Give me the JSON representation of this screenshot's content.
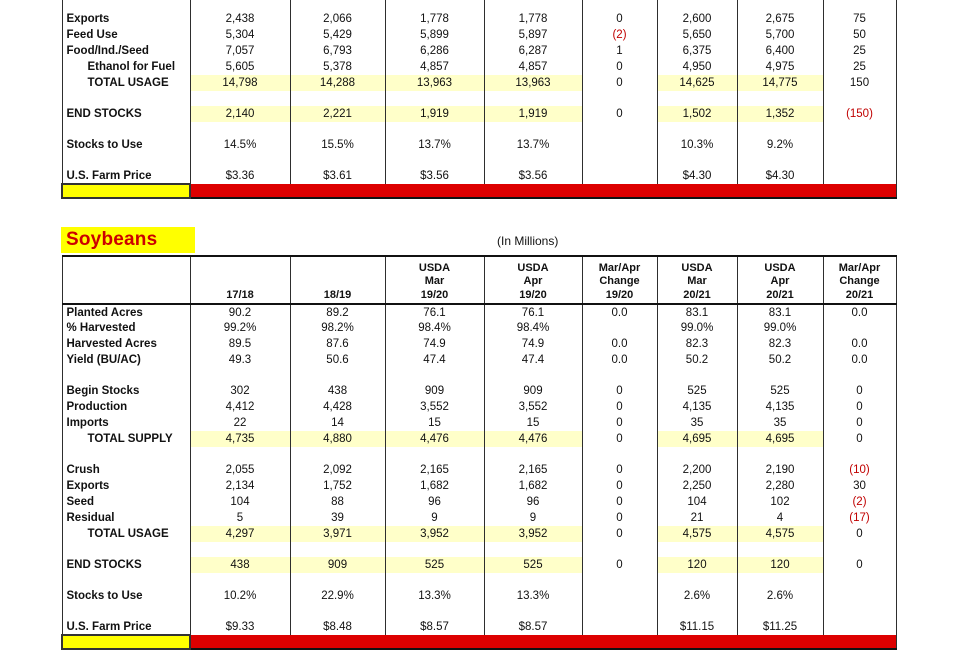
{
  "colors": {
    "row_highlight": "#ffffc9",
    "title_highlight_yellow": "#ffff00",
    "separator_bar_red": "#dd0000",
    "negative_value_red": "#c00000",
    "title_text_red": "#cc0000",
    "grid_border": "#2e2e2e"
  },
  "tables": {
    "top_table": {
      "rows": [
        {
          "label": "Exports",
          "cells": [
            "2,438",
            "2,066",
            "1,778",
            "1,778",
            "0",
            "2,600",
            "2,675",
            "75"
          ]
        },
        {
          "label": "Feed Use",
          "cells": [
            "5,304",
            "5,429",
            "5,899",
            "5,897",
            "(2)",
            "5,650",
            "5,700",
            "50"
          ]
        },
        {
          "label": "Food/Ind./Seed",
          "cells": [
            "7,057",
            "6,793",
            "6,286",
            "6,287",
            "1",
            "6,375",
            "6,400",
            "25"
          ]
        },
        {
          "label": "Ethanol for Fuel",
          "indent": true,
          "cells": [
            "5,605",
            "5,378",
            "4,857",
            "4,857",
            "0",
            "4,950",
            "4,975",
            "25"
          ]
        },
        {
          "label": "TOTAL USAGE",
          "indent": true,
          "highlight": true,
          "cells": [
            "14,798",
            "14,288",
            "13,963",
            "13,963",
            "0",
            "14,625",
            "14,775",
            "150"
          ]
        },
        {
          "blank": true
        },
        {
          "label": "END STOCKS",
          "highlight": true,
          "cells": [
            "2,140",
            "2,221",
            "1,919",
            "1,919",
            "0",
            "1,502",
            "1,352",
            "(150)"
          ]
        },
        {
          "blank": true
        },
        {
          "label": "Stocks to Use",
          "cells": [
            "14.5%",
            "15.5%",
            "13.7%",
            "13.7%",
            "",
            "10.3%",
            "9.2%",
            ""
          ]
        },
        {
          "blank": true
        },
        {
          "label": "U.S. Farm Price",
          "cells": [
            "$3.36",
            "$3.61",
            "$3.56",
            "$3.56",
            "",
            "$4.30",
            "$4.30",
            ""
          ]
        }
      ]
    },
    "soybeans": {
      "title": "Soybeans",
      "units_caption": "(In Millions)",
      "column_headers": [
        "",
        "17/18",
        "18/19",
        "USDA\nMar\n19/20",
        "USDA\nApr\n19/20",
        "Mar/Apr\nChange\n19/20",
        "USDA\nMar\n20/21",
        "USDA\nApr\n20/21",
        "Mar/Apr\nChange\n20/21"
      ],
      "rows": [
        {
          "label": "Planted Acres",
          "cells": [
            "90.2",
            "89.2",
            "76.1",
            "76.1",
            "0.0",
            "83.1",
            "83.1",
            "0.0"
          ]
        },
        {
          "label": "% Harvested",
          "cells": [
            "99.2%",
            "98.2%",
            "98.4%",
            "98.4%",
            "",
            "99.0%",
            "99.0%",
            ""
          ]
        },
        {
          "label": "Harvested Acres",
          "cells": [
            "89.5",
            "87.6",
            "74.9",
            "74.9",
            "0.0",
            "82.3",
            "82.3",
            "0.0"
          ]
        },
        {
          "label": "Yield (BU/AC)",
          "cells": [
            "49.3",
            "50.6",
            "47.4",
            "47.4",
            "0.0",
            "50.2",
            "50.2",
            "0.0"
          ]
        },
        {
          "blank": true
        },
        {
          "label": "Begin Stocks",
          "cells": [
            "302",
            "438",
            "909",
            "909",
            "0",
            "525",
            "525",
            "0"
          ]
        },
        {
          "label": "Production",
          "cells": [
            "4,412",
            "4,428",
            "3,552",
            "3,552",
            "0",
            "4,135",
            "4,135",
            "0"
          ]
        },
        {
          "label": "Imports",
          "cells": [
            "22",
            "14",
            "15",
            "15",
            "0",
            "35",
            "35",
            "0"
          ]
        },
        {
          "label": "TOTAL SUPPLY",
          "indent": true,
          "highlight": true,
          "cells": [
            "4,735",
            "4,880",
            "4,476",
            "4,476",
            "0",
            "4,695",
            "4,695",
            "0"
          ]
        },
        {
          "blank": true
        },
        {
          "label": "Crush",
          "cells": [
            "2,055",
            "2,092",
            "2,165",
            "2,165",
            "0",
            "2,200",
            "2,190",
            "(10)"
          ]
        },
        {
          "label": "Exports",
          "cells": [
            "2,134",
            "1,752",
            "1,682",
            "1,682",
            "0",
            "2,250",
            "2,280",
            "30"
          ]
        },
        {
          "label": "Seed",
          "cells": [
            "104",
            "88",
            "96",
            "96",
            "0",
            "104",
            "102",
            "(2)"
          ]
        },
        {
          "label": "Residual",
          "cells": [
            "5",
            "39",
            "9",
            "9",
            "0",
            "21",
            "4",
            "(17)"
          ]
        },
        {
          "label": "TOTAL USAGE",
          "indent": true,
          "highlight": true,
          "cells": [
            "4,297",
            "3,971",
            "3,952",
            "3,952",
            "0",
            "4,575",
            "4,575",
            "0"
          ]
        },
        {
          "blank": true
        },
        {
          "label": "END STOCKS",
          "highlight": true,
          "cells": [
            "438",
            "909",
            "525",
            "525",
            "0",
            "120",
            "120",
            "0"
          ]
        },
        {
          "blank": true
        },
        {
          "label": "Stocks to Use",
          "cells": [
            "10.2%",
            "22.9%",
            "13.3%",
            "13.3%",
            "",
            "2.6%",
            "2.6%",
            ""
          ]
        },
        {
          "blank": true
        },
        {
          "label": "U.S. Farm Price",
          "cells": [
            "$9.33",
            "$8.48",
            "$8.57",
            "$8.57",
            "",
            "$11.15",
            "$11.25",
            ""
          ]
        }
      ]
    }
  }
}
